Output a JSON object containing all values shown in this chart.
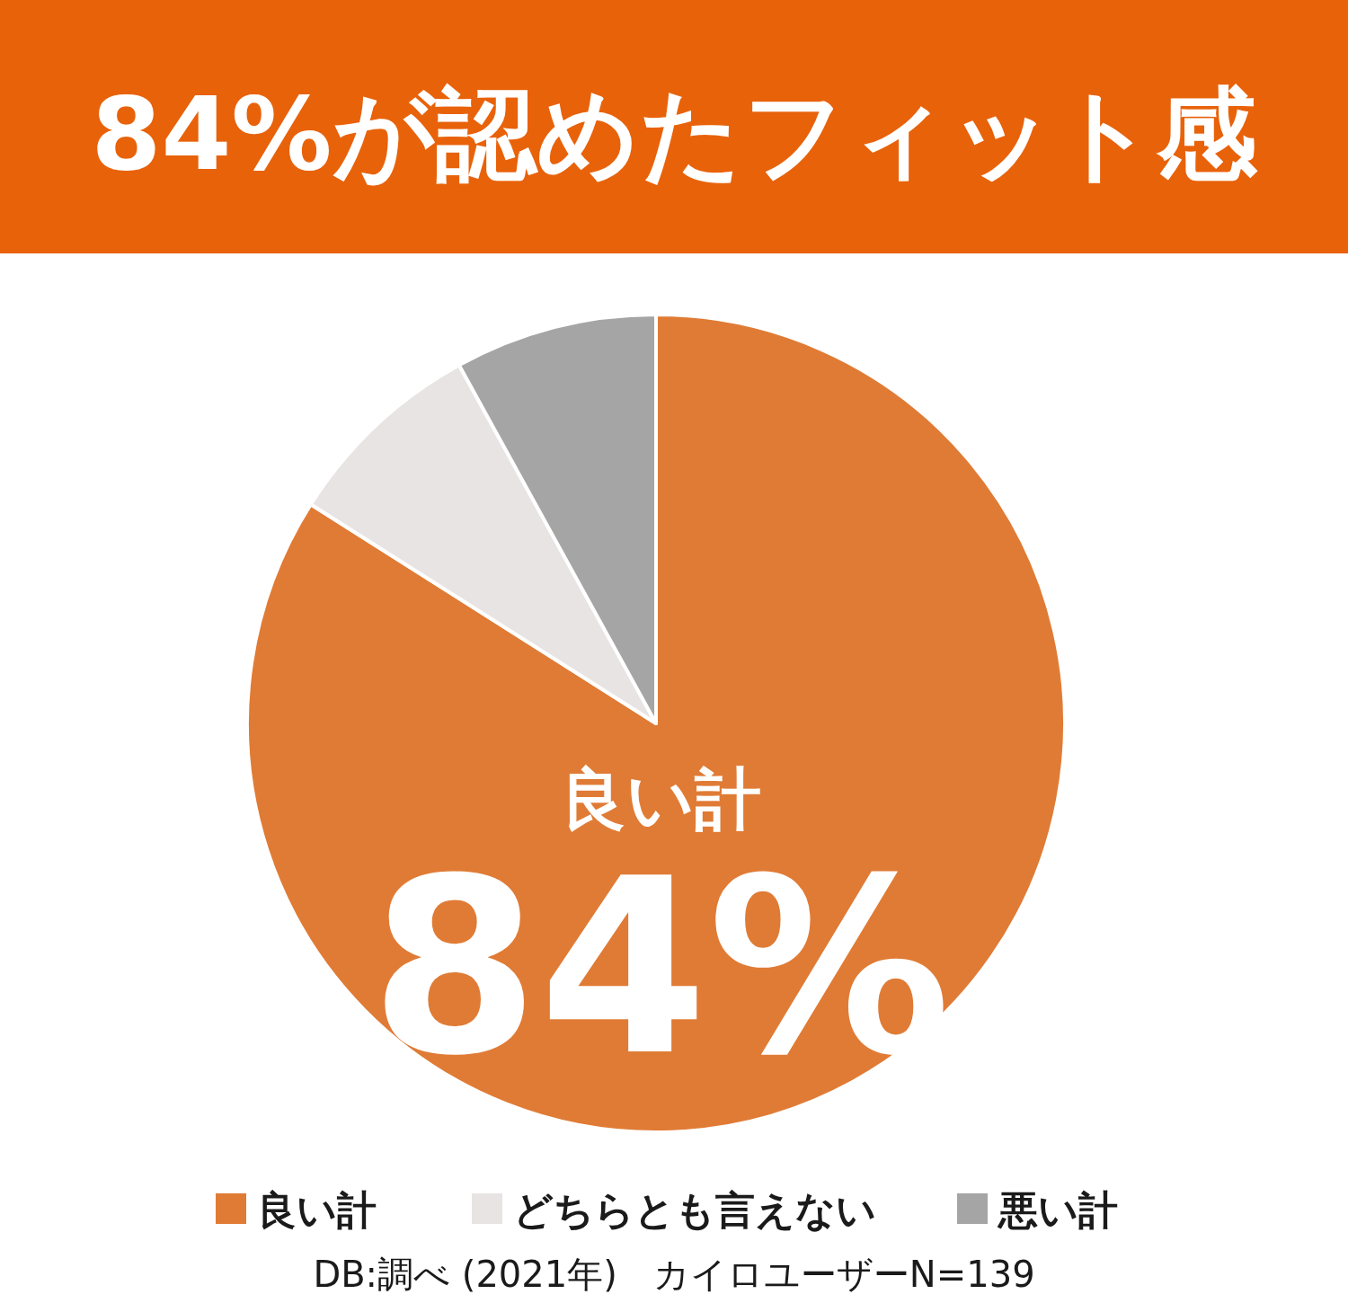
{
  "chart_data": {
    "type": "pie",
    "title": "84%が認めたフィット感",
    "categories": [
      "良い計",
      "どちらとも言えない",
      "悪い計"
    ],
    "values": [
      84,
      8,
      8
    ],
    "colors": [
      "#e07b35",
      "#e8e4e4",
      "#a5a5a5"
    ],
    "value_labels": [
      "84%",
      null,
      null
    ],
    "legend": "bottom",
    "annotations": [
      "DB:調べ (2021年)　カイロユーザーN=139"
    ]
  }
}
